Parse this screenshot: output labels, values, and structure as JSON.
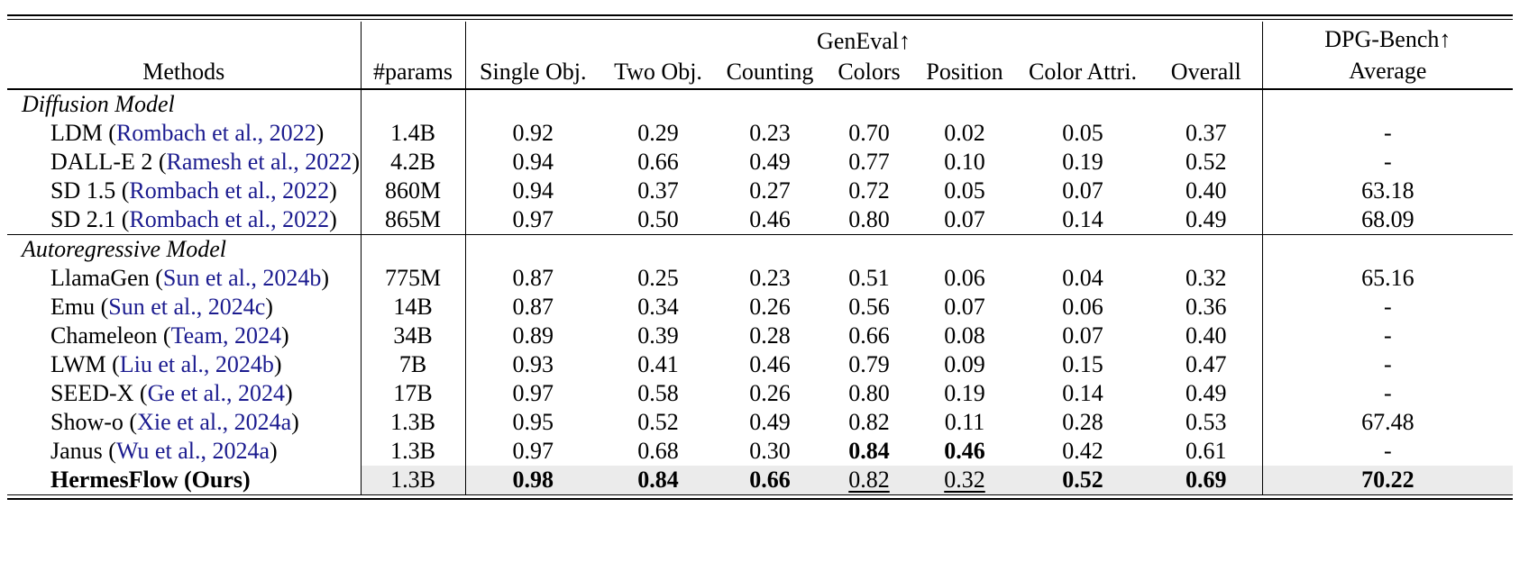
{
  "table": {
    "header": {
      "methods": "Methods",
      "params": "#params",
      "geneval": "GenEval↑",
      "subcolumns": [
        "Single Obj.",
        "Two Obj.",
        "Counting",
        "Colors",
        "Position",
        "Color Attri.",
        "Overall"
      ],
      "dpg_title": "DPG-Bench↑",
      "dpg_subtitle": "Average"
    },
    "colors": {
      "citation": "#1b1b8f",
      "highlight": "#ebebeb",
      "rule": "#000000"
    },
    "sections": [
      {
        "label": "Diffusion Model",
        "rows": [
          {
            "pre": "LDM (",
            "cite": "Rombach et al., 2022",
            "post": ")",
            "params": "1.4B",
            "cells": [
              {
                "v": "0.92"
              },
              {
                "v": "0.29"
              },
              {
                "v": "0.23"
              },
              {
                "v": "0.70"
              },
              {
                "v": "0.02"
              },
              {
                "v": "0.05"
              },
              {
                "v": "0.37"
              },
              {
                "v": "-"
              }
            ]
          },
          {
            "pre": "DALL-E 2 (",
            "cite": "Ramesh et al., 2022",
            "post": ")",
            "params": "4.2B",
            "cells": [
              {
                "v": "0.94"
              },
              {
                "v": "0.66"
              },
              {
                "v": "0.49"
              },
              {
                "v": "0.77"
              },
              {
                "v": "0.10"
              },
              {
                "v": "0.19"
              },
              {
                "v": "0.52"
              },
              {
                "v": "-"
              }
            ]
          },
          {
            "pre": "SD 1.5 (",
            "cite": "Rombach et al., 2022",
            "post": ")",
            "params": "860M",
            "cells": [
              {
                "v": "0.94"
              },
              {
                "v": "0.37"
              },
              {
                "v": "0.27"
              },
              {
                "v": "0.72"
              },
              {
                "v": "0.05"
              },
              {
                "v": "0.07"
              },
              {
                "v": "0.40"
              },
              {
                "v": "63.18"
              }
            ]
          },
          {
            "pre": "SD 2.1 (",
            "cite": "Rombach et al., 2022",
            "post": ")",
            "params": "865M",
            "cells": [
              {
                "v": "0.97"
              },
              {
                "v": "0.50"
              },
              {
                "v": "0.46"
              },
              {
                "v": "0.80"
              },
              {
                "v": "0.07"
              },
              {
                "v": "0.14"
              },
              {
                "v": "0.49"
              },
              {
                "v": "68.09"
              }
            ]
          }
        ]
      },
      {
        "label": "Autoregressive Model",
        "rows": [
          {
            "pre": "LlamaGen (",
            "cite": "Sun et al., 2024b",
            "post": ")",
            "params": "775M",
            "cells": [
              {
                "v": "0.87"
              },
              {
                "v": "0.25"
              },
              {
                "v": "0.23"
              },
              {
                "v": "0.51"
              },
              {
                "v": "0.06"
              },
              {
                "v": "0.04"
              },
              {
                "v": "0.32"
              },
              {
                "v": "65.16"
              }
            ]
          },
          {
            "pre": "Emu (",
            "cite": "Sun et al., 2024c",
            "post": ")",
            "params": "14B",
            "cells": [
              {
                "v": "0.87"
              },
              {
                "v": "0.34"
              },
              {
                "v": "0.26"
              },
              {
                "v": "0.56"
              },
              {
                "v": "0.07"
              },
              {
                "v": "0.06"
              },
              {
                "v": "0.36"
              },
              {
                "v": "-"
              }
            ]
          },
          {
            "pre": "Chameleon (",
            "cite": "Team, 2024",
            "post": ")",
            "params": "34B",
            "cells": [
              {
                "v": "0.89"
              },
              {
                "v": "0.39"
              },
              {
                "v": "0.28"
              },
              {
                "v": "0.66"
              },
              {
                "v": "0.08"
              },
              {
                "v": "0.07"
              },
              {
                "v": "0.40"
              },
              {
                "v": "-"
              }
            ]
          },
          {
            "pre": "LWM (",
            "cite": "Liu et al., 2024b",
            "post": ")",
            "params": "7B",
            "cells": [
              {
                "v": "0.93"
              },
              {
                "v": "0.41"
              },
              {
                "v": "0.46"
              },
              {
                "v": "0.79"
              },
              {
                "v": "0.09"
              },
              {
                "v": "0.15"
              },
              {
                "v": "0.47"
              },
              {
                "v": "-"
              }
            ]
          },
          {
            "pre": "SEED-X (",
            "cite": "Ge et al., 2024",
            "post": ")",
            "params": "17B",
            "cells": [
              {
                "v": "0.97"
              },
              {
                "v": "0.58"
              },
              {
                "v": "0.26"
              },
              {
                "v": "0.80"
              },
              {
                "v": "0.19"
              },
              {
                "v": "0.14"
              },
              {
                "v": "0.49"
              },
              {
                "v": "-"
              }
            ]
          },
          {
            "pre": "Show-o (",
            "cite": "Xie et al., 2024a",
            "post": ")",
            "params": "1.3B",
            "cells": [
              {
                "v": "0.95"
              },
              {
                "v": "0.52"
              },
              {
                "v": "0.49"
              },
              {
                "v": "0.82"
              },
              {
                "v": "0.11"
              },
              {
                "v": "0.28"
              },
              {
                "v": "0.53"
              },
              {
                "v": "67.48"
              }
            ]
          },
          {
            "pre": "Janus (",
            "cite": "Wu et al., 2024a",
            "post": ")",
            "params": "1.3B",
            "cells": [
              {
                "v": "0.97"
              },
              {
                "v": "0.68"
              },
              {
                "v": "0.30"
              },
              {
                "v": "0.84",
                "b": true
              },
              {
                "v": "0.46",
                "b": true
              },
              {
                "v": "0.42"
              },
              {
                "v": "0.61"
              },
              {
                "v": "-"
              }
            ]
          },
          {
            "pre": "HermesFlow (Ours)",
            "cite": "",
            "post": "",
            "bold": true,
            "highlight": true,
            "params": "1.3B",
            "cells": [
              {
                "v": "0.98",
                "b": true
              },
              {
                "v": "0.84",
                "b": true
              },
              {
                "v": "0.66",
                "b": true
              },
              {
                "v": "0.82",
                "u": true
              },
              {
                "v": "0.32",
                "u": true
              },
              {
                "v": "0.52",
                "b": true
              },
              {
                "v": "0.69",
                "b": true
              },
              {
                "v": "70.22",
                "b": true
              }
            ]
          }
        ]
      }
    ]
  }
}
